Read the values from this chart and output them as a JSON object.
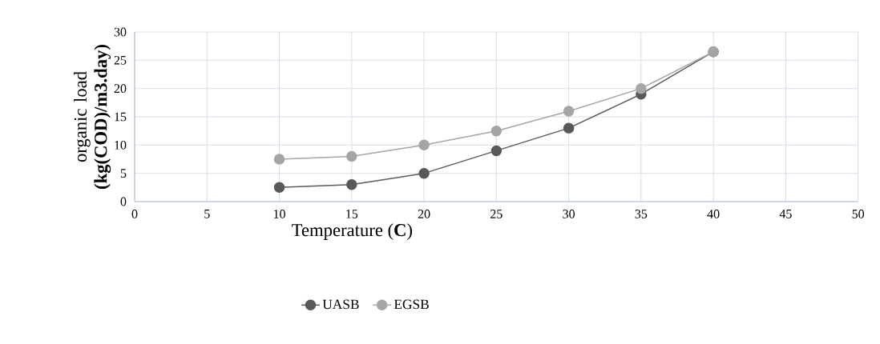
{
  "chart_data": {
    "type": "line",
    "xlabel": "Temperature (**C**)",
    "ylabel": "organic load **(kg(COD)/m3.day)**",
    "x": [
      10,
      15,
      20,
      25,
      30,
      35,
      40
    ],
    "series": [
      {
        "name": "UASB",
        "color": "#595959",
        "values": [
          2.5,
          3,
          5,
          9,
          13,
          19,
          26.5
        ]
      },
      {
        "name": "EGSB",
        "color": "#a5a5a5",
        "values": [
          7.5,
          8,
          10,
          12.5,
          16,
          20,
          26.5
        ]
      }
    ],
    "xlim": [
      0,
      50
    ],
    "xticks": [
      0,
      5,
      10,
      15,
      20,
      25,
      30,
      35,
      40,
      45,
      50
    ],
    "ylim": [
      0,
      30
    ],
    "yticks": [
      0,
      5,
      10,
      15,
      20,
      25,
      30
    ],
    "grid": true,
    "legend": "bottom",
    "marker": "circle",
    "line_style": "solid"
  }
}
